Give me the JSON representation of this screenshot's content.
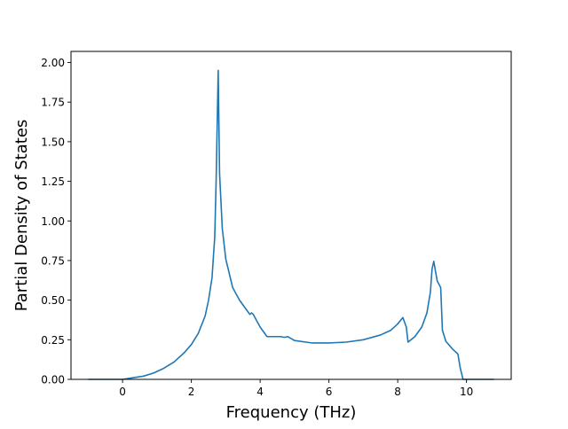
{
  "chart_data": {
    "type": "line",
    "title": "",
    "xlabel": "Frequency (THz)",
    "ylabel": "Partial Density of States",
    "xlim": [
      -1.5,
      11.3
    ],
    "ylim": [
      0.0,
      2.07
    ],
    "xticks": [
      0,
      2,
      4,
      6,
      8,
      10
    ],
    "yticks": [
      0.0,
      0.25,
      0.5,
      0.75,
      1.0,
      1.25,
      1.5,
      1.75,
      2.0
    ],
    "ytick_labels": [
      "0.00",
      "0.25",
      "0.50",
      "0.75",
      "1.00",
      "1.25",
      "1.50",
      "1.75",
      "2.00"
    ],
    "xtick_labels": [
      "0",
      "2",
      "4",
      "6",
      "8",
      "10"
    ],
    "grid": false,
    "series": [
      {
        "color": "#1f77b4",
        "x": [
          -1.0,
          -0.5,
          0.0,
          0.3,
          0.6,
          0.9,
          1.2,
          1.5,
          1.8,
          2.0,
          2.2,
          2.4,
          2.5,
          2.6,
          2.68,
          2.72,
          2.75,
          2.78,
          2.82,
          2.9,
          3.0,
          3.2,
          3.4,
          3.6,
          3.7,
          3.75,
          3.8,
          3.9,
          4.0,
          4.1,
          4.2,
          4.4,
          4.6,
          4.7,
          4.8,
          5.0,
          5.5,
          6.0,
          6.5,
          7.0,
          7.5,
          7.8,
          8.0,
          8.15,
          8.25,
          8.3,
          8.5,
          8.7,
          8.85,
          8.95,
          9.0,
          9.05,
          9.1,
          9.15,
          9.25,
          9.3,
          9.4,
          9.6,
          9.75,
          9.82,
          9.9,
          10.3,
          10.8
        ],
        "y": [
          0.0,
          0.0,
          0.0,
          0.01,
          0.02,
          0.04,
          0.07,
          0.11,
          0.17,
          0.22,
          0.29,
          0.4,
          0.5,
          0.64,
          0.9,
          1.25,
          1.6,
          1.95,
          1.3,
          0.95,
          0.76,
          0.58,
          0.5,
          0.44,
          0.41,
          0.42,
          0.41,
          0.37,
          0.33,
          0.3,
          0.27,
          0.27,
          0.27,
          0.265,
          0.27,
          0.245,
          0.23,
          0.23,
          0.235,
          0.25,
          0.28,
          0.31,
          0.35,
          0.39,
          0.33,
          0.235,
          0.27,
          0.33,
          0.42,
          0.55,
          0.7,
          0.745,
          0.68,
          0.62,
          0.58,
          0.31,
          0.24,
          0.19,
          0.16,
          0.07,
          0.0,
          0.0,
          0.0
        ]
      }
    ]
  }
}
